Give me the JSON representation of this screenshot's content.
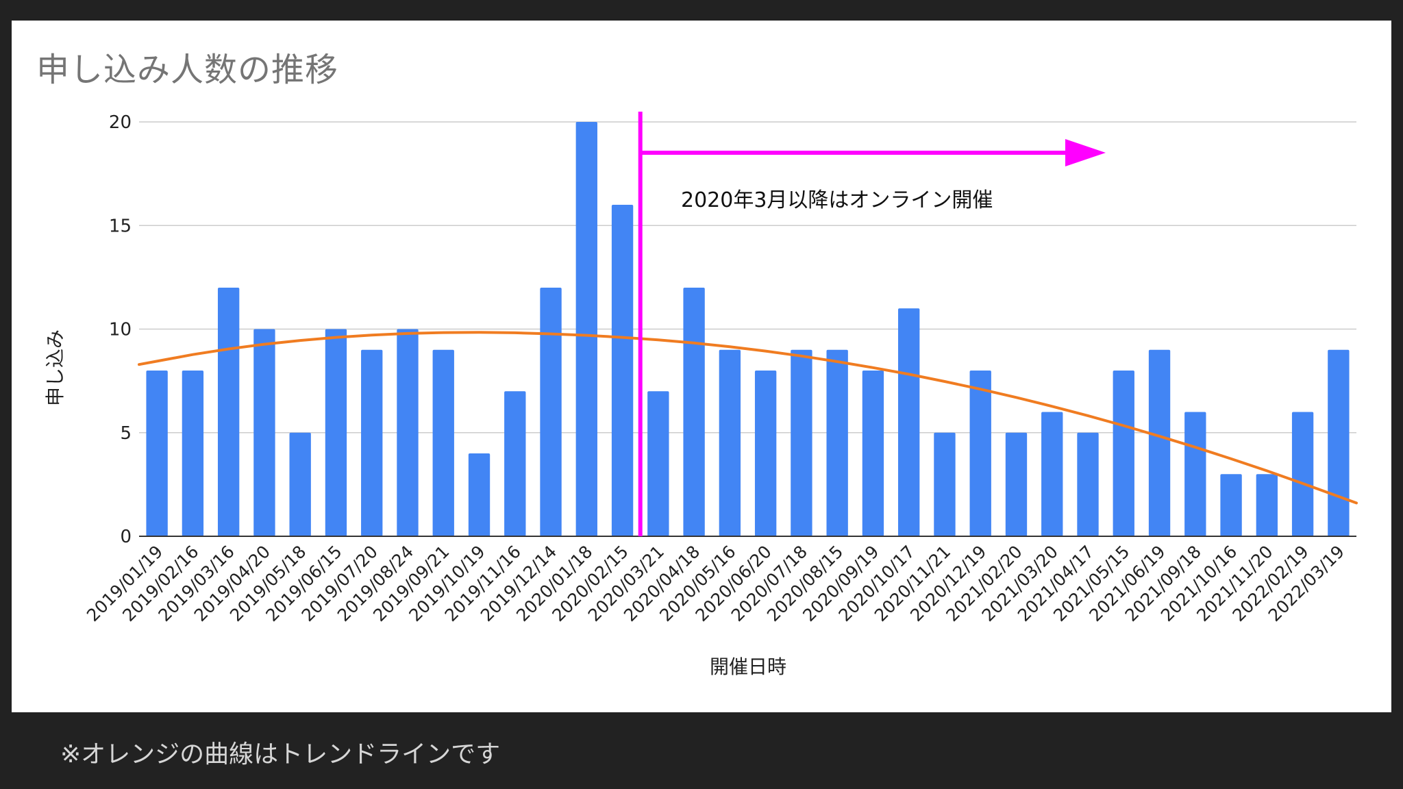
{
  "footnote": "※オレンジの曲線はトレンドラインです",
  "chart_data": {
    "type": "bar",
    "title": "申し込み人数の推移",
    "xlabel": "開催日時",
    "ylabel": "申し込み",
    "ylim": [
      0,
      20
    ],
    "yticks": [
      0,
      5,
      10,
      15,
      20
    ],
    "grid": true,
    "categories": [
      "2019/01/19",
      "2019/02/16",
      "2019/03/16",
      "2019/04/20",
      "2019/05/18",
      "2019/06/15",
      "2019/07/20",
      "2019/08/24",
      "2019/09/21",
      "2019/10/19",
      "2019/11/16",
      "2019/12/14",
      "2020/01/18",
      "2020/02/15",
      "2020/03/21",
      "2020/04/18",
      "2020/05/16",
      "2020/06/20",
      "2020/07/18",
      "2020/08/15",
      "2020/09/19",
      "2020/10/17",
      "2020/11/21",
      "2020/12/19",
      "2021/02/20",
      "2021/03/20",
      "2021/04/17",
      "2021/05/15",
      "2021/06/19",
      "2021/09/18",
      "2021/10/16",
      "2021/11/20",
      "2022/02/19",
      "2022/03/19"
    ],
    "series": [
      {
        "values": [
          8,
          8,
          12,
          10,
          5,
          10,
          9,
          10,
          9,
          4,
          7,
          12,
          20,
          16,
          7,
          12,
          9,
          8,
          9,
          9,
          8,
          11,
          5,
          8,
          5,
          6,
          5,
          8,
          9,
          6,
          3,
          3,
          6,
          9
        ],
        "color": "#4285f4"
      }
    ],
    "trendline": {
      "kind": "polynomial",
      "color": "#f07c21",
      "values": [
        8.45,
        8.77,
        9.04,
        9.27,
        9.45,
        9.6,
        9.71,
        9.79,
        9.83,
        9.84,
        9.82,
        9.77,
        9.7,
        9.6,
        9.48,
        9.33,
        9.15,
        8.94,
        8.7,
        8.43,
        8.14,
        7.82,
        7.47,
        7.1,
        6.7,
        6.27,
        5.82,
        5.34,
        4.83,
        4.3,
        3.74,
        3.16,
        2.55,
        1.92
      ]
    },
    "annotation": {
      "text": "2020年3月以降はオンライン開催",
      "color": "#ff00ff",
      "marker_between": [
        "2020/02/15",
        "2020/03/21"
      ]
    }
  }
}
